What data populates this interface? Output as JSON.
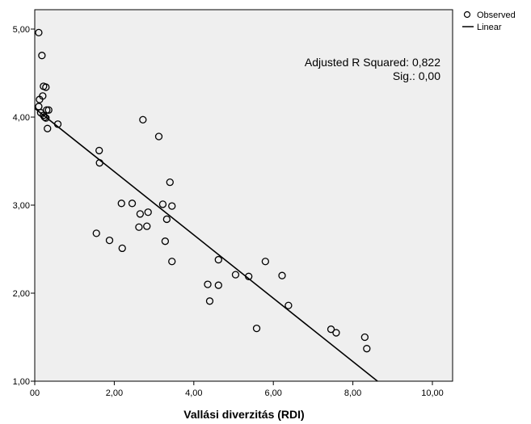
{
  "chart_data": {
    "type": "scatter",
    "title": "",
    "xlabel": "Vallási diverzitás (RDI)",
    "ylabel": "",
    "xlim": [
      0,
      10
    ],
    "ylim": [
      1,
      5.2
    ],
    "x_ticks": [
      "00",
      "2,00",
      "4,00",
      "6,00",
      "8,00",
      "10,00"
    ],
    "x_tick_values": [
      0,
      2,
      4,
      6,
      8,
      10
    ],
    "y_ticks": [
      "1,00",
      "2,00",
      "3,00",
      "4,00",
      "5,00"
    ],
    "y_tick_values": [
      1,
      2,
      3,
      4,
      5
    ],
    "grid": false,
    "legend_position": "top-right outside",
    "plot_background": "#efefef",
    "series": [
      {
        "name": "Observed",
        "kind": "points",
        "marker": "hollow-circle",
        "x": [
          0.1,
          0.18,
          0.22,
          0.28,
          0.2,
          0.12,
          0.1,
          0.15,
          0.22,
          0.25,
          0.3,
          0.35,
          0.28,
          0.32,
          0.58,
          1.62,
          1.63,
          2.72,
          3.12,
          3.4,
          2.18,
          2.45,
          2.65,
          2.85,
          3.22,
          3.32,
          3.45,
          2.62,
          2.82,
          1.55,
          1.88,
          2.2,
          3.28,
          3.45,
          4.62,
          4.35,
          4.62,
          5.05,
          5.38,
          5.8,
          6.22,
          6.38,
          4.4,
          5.58,
          7.45,
          7.58,
          8.3,
          8.35
        ],
        "y": [
          4.96,
          4.7,
          4.35,
          4.34,
          4.24,
          4.2,
          4.12,
          4.05,
          4.02,
          4.0,
          4.08,
          4.08,
          3.99,
          3.87,
          3.92,
          3.62,
          3.48,
          3.97,
          3.78,
          3.26,
          3.02,
          3.02,
          2.9,
          2.92,
          3.01,
          2.84,
          2.99,
          2.75,
          2.76,
          2.68,
          2.6,
          2.51,
          2.59,
          2.36,
          2.38,
          2.1,
          2.09,
          2.21,
          2.19,
          2.36,
          2.2,
          1.86,
          1.91,
          1.6,
          1.59,
          1.55,
          1.5,
          1.37
        ]
      },
      {
        "name": "Linear",
        "kind": "line",
        "x": [
          0,
          8.62
        ],
        "y": [
          4.1,
          0.95
        ]
      }
    ],
    "annotations": [
      "Adjusted R Squared: 0,822",
      "Sig.: 0,00"
    ],
    "colors": {
      "marker": "#000000",
      "line": "#000000",
      "background": "#efefef"
    }
  }
}
